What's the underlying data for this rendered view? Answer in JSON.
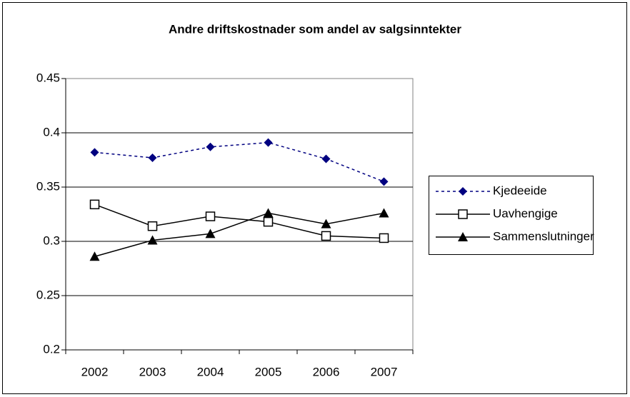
{
  "chart_data": {
    "type": "line",
    "title": "Andre driftskostnader som andel av salgsinntekter",
    "categories": [
      "2002",
      "2003",
      "2004",
      "2005",
      "2006",
      "2007"
    ],
    "series": [
      {
        "name": "Kjedeeide",
        "color": "#000080",
        "marker": "diamond",
        "dashed": true,
        "values": [
          0.382,
          0.377,
          0.387,
          0.391,
          0.376,
          0.355
        ]
      },
      {
        "name": "Uavhengige",
        "color": "#000000",
        "marker": "square",
        "dashed": false,
        "values": [
          0.334,
          0.314,
          0.323,
          0.318,
          0.305,
          0.303
        ]
      },
      {
        "name": "Sammenslutninger",
        "color": "#000000",
        "marker": "triangle",
        "dashed": false,
        "values": [
          0.286,
          0.301,
          0.307,
          0.326,
          0.316,
          0.326
        ]
      }
    ],
    "ylim": [
      0.2,
      0.45
    ],
    "yticks": [
      0.2,
      0.25,
      0.3,
      0.35,
      0.4,
      0.45
    ],
    "grid": true,
    "legend": "right"
  }
}
